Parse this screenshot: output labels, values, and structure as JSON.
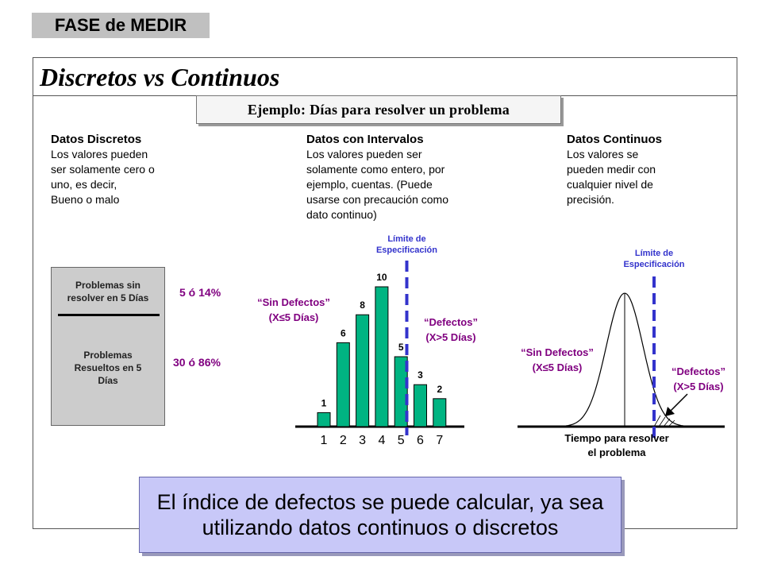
{
  "header": {
    "phase": "FASE de MEDIR",
    "title": "Discretos vs Continuos"
  },
  "example": "Ejemplo:  Días para resolver un problema",
  "columns": [
    {
      "heading": "Datos Discretos",
      "text": "Los valores pueden\nser solamente cero o\nuno, es decir,\nBueno o malo"
    },
    {
      "heading": "Datos con Intervalos",
      "text": "Los valores pueden ser\nsolamente como entero, por\nejemplo, cuentas. (Puede\nusarse con precaución como\ndato continuo)"
    },
    {
      "heading": "Datos Continuos",
      "text": "Los valores se\npueden medir con\ncualquier nivel de\nprecisión."
    }
  ],
  "discrete": {
    "top_label": "Problemas sin\nresolver en 5 Días",
    "bottom_label": "Problemas\nResueltos  en 5\nDías",
    "top_pct": "5 ó 14%",
    "bottom_pct": "30 ó 86%"
  },
  "histogram": {
    "spec_label": "Límite de\nEspecificación",
    "categories": [
      "1",
      "2",
      "3",
      "4",
      "5",
      "6",
      "7"
    ],
    "values": [
      1,
      6,
      8,
      10,
      5,
      3,
      2
    ],
    "value_labels": [
      "1",
      "6",
      "8",
      "10",
      "5",
      "3",
      "2"
    ],
    "spec_limit": 5.3,
    "left_annotation": [
      "“Sin Defectos”",
      "(X≤5 Días)"
    ],
    "right_annotation": [
      "“Defectos”",
      "(X>5 Días)"
    ],
    "bar_color": "#00b482"
  },
  "continuous": {
    "spec_label": "Límite de\nEspecificación",
    "left_annotation": [
      "“Sin Defectos”",
      "(X≤5 Días)"
    ],
    "right_annotation": [
      "“Defectos”",
      "(X>5 Días)"
    ],
    "axis_label": [
      "Tiempo para resolver",
      "el problema"
    ]
  },
  "colors": {
    "spec_line": "#3333cc",
    "annotation": "#800080",
    "callout_bg": "#c8c8f8"
  },
  "callout": "El índice de defectos se puede calcular, ya sea\nutilizando datos continuos o discretos"
}
